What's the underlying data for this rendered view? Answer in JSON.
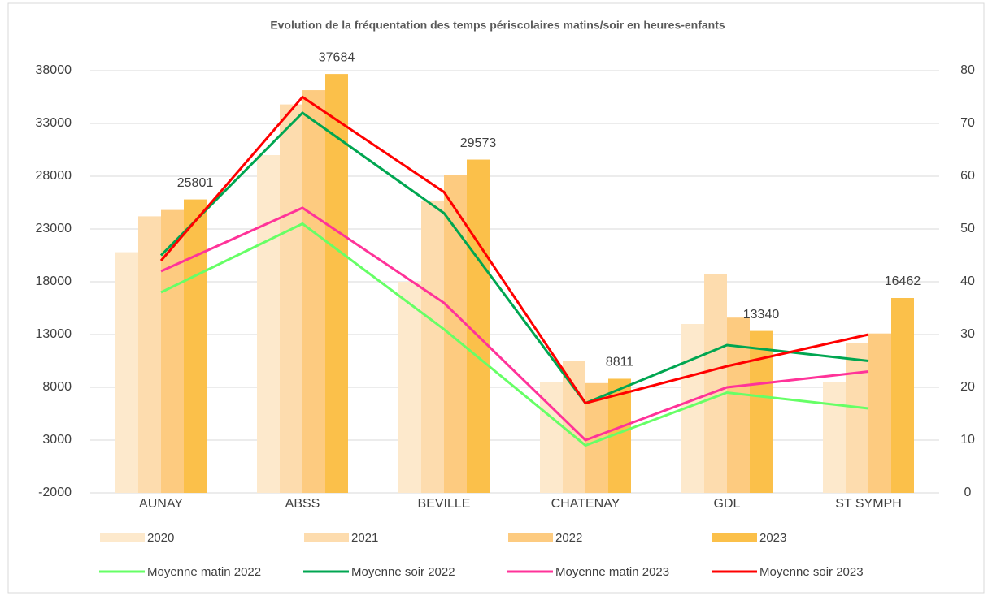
{
  "chart_data": {
    "type": "bar_line_combo",
    "title": "Evolution de la fréquentation des temps périscolaires matins/soir en heures-enfants",
    "categories": [
      "AUNAY",
      "ABSS",
      "BEVILLE",
      "CHATENAY",
      "GDL",
      "ST SYMPH"
    ],
    "ylim": [
      -2000,
      38000
    ],
    "yticks": [
      -2000,
      3000,
      8000,
      13000,
      18000,
      23000,
      28000,
      33000,
      38000
    ],
    "y2lim": [
      0,
      80
    ],
    "y2ticks": [
      0,
      10,
      20,
      30,
      40,
      50,
      60,
      70,
      80
    ],
    "grid": true,
    "series": [
      {
        "name": "2020",
        "kind": "bar",
        "color": "#fde9cc",
        "values": [
          20800,
          30000,
          18000,
          8500,
          14000,
          8500
        ]
      },
      {
        "name": "2021",
        "kind": "bar",
        "color": "#fddcae",
        "values": [
          24200,
          34800,
          25700,
          10500,
          18700,
          12200
        ]
      },
      {
        "name": "2022",
        "kind": "bar",
        "color": "#fdcb80",
        "values": [
          24800,
          36150,
          28100,
          8400,
          14600,
          13100
        ]
      },
      {
        "name": "2023",
        "kind": "bar",
        "color": "#fbc04a",
        "data_labels": true,
        "values": [
          25801,
          37684,
          29573,
          8811,
          13340,
          16462
        ]
      },
      {
        "name": "Moyenne matin 2022",
        "kind": "line",
        "axis": "y2",
        "color": "#66ff66",
        "values": [
          38,
          51,
          31,
          9,
          19,
          16
        ]
      },
      {
        "name": "Moyenne soir 2022",
        "kind": "line",
        "axis": "y2",
        "color": "#00a651",
        "values": [
          45,
          72,
          53,
          17,
          28,
          25
        ]
      },
      {
        "name": "Moyenne matin 2023",
        "kind": "line",
        "axis": "y2",
        "color": "#ff3399",
        "values": [
          42,
          54,
          36,
          10,
          20,
          23
        ]
      },
      {
        "name": "Moyenne soir 2023",
        "kind": "line",
        "axis": "y2",
        "color": "#ff0000",
        "values": [
          44,
          75,
          57,
          17,
          24,
          30
        ]
      }
    ]
  }
}
